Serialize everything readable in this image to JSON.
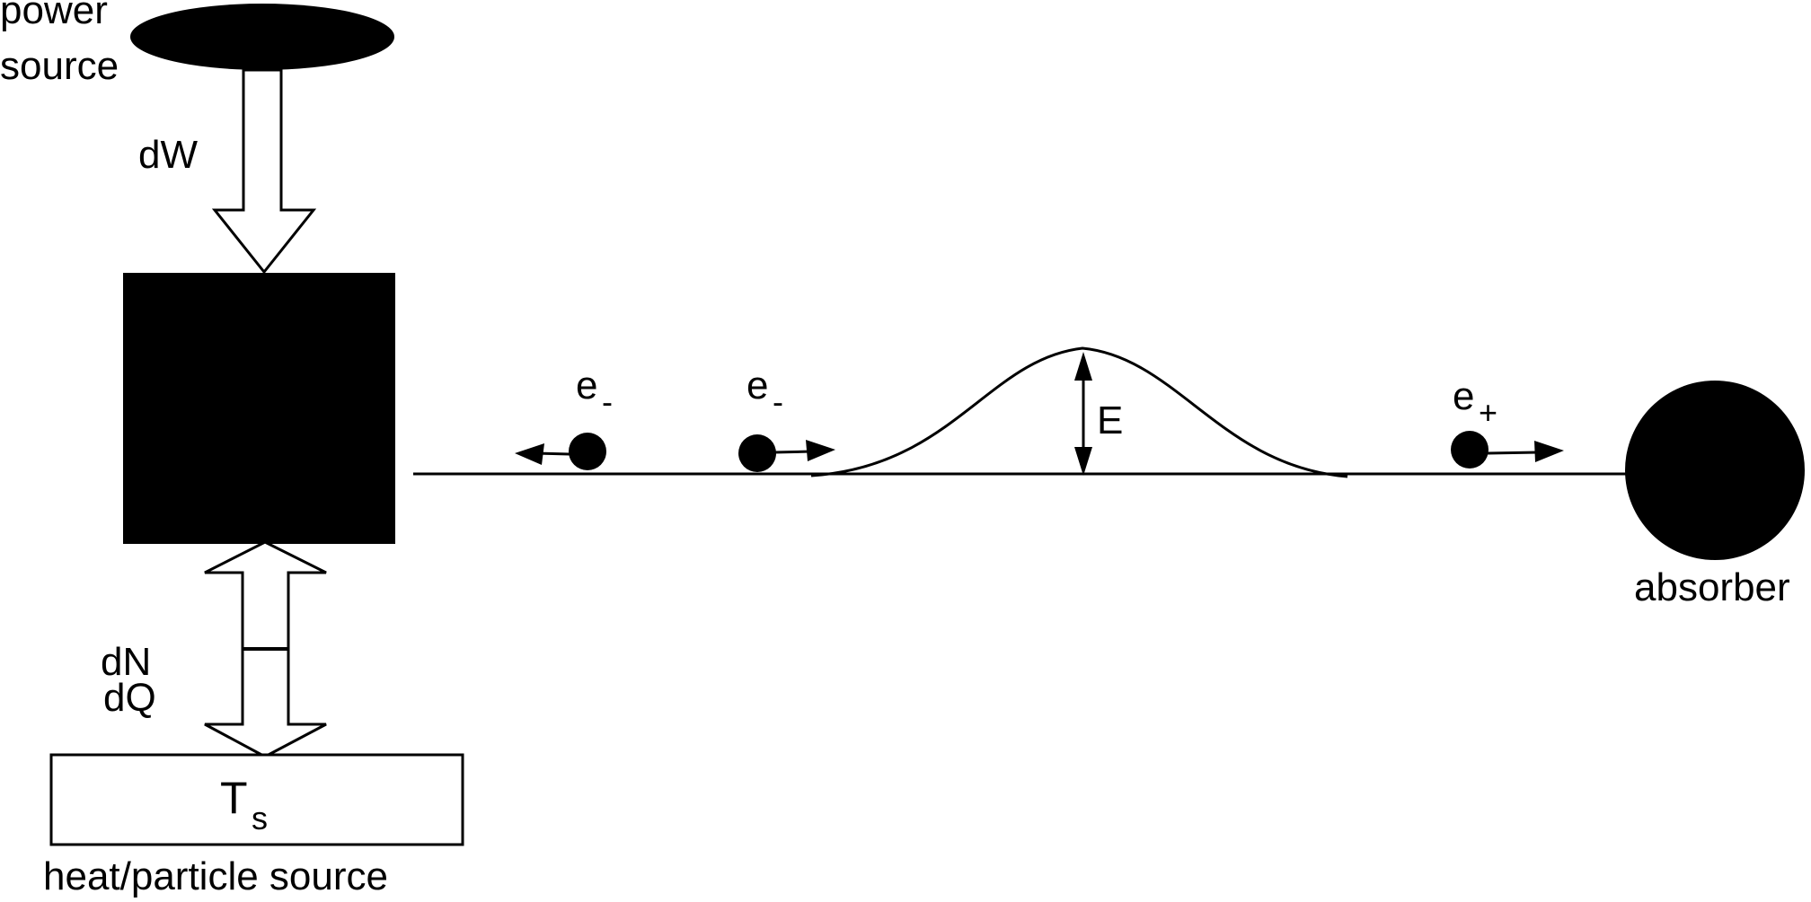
{
  "labels": {
    "power_source_line1": "power",
    "power_source_line2": "source",
    "work": "dW",
    "particles": "dN",
    "heat": "dQ",
    "source_temp_main": "T",
    "source_temp_sub": "s",
    "heat_particle_source": "heat/particle source",
    "energy": "E",
    "absorber": "absorber",
    "electron_left_main": "e",
    "electron_left_sub": "-",
    "electron_mid_main": "e",
    "electron_mid_sub": "-",
    "electron_right_main": "e",
    "electron_right_sub": "+"
  },
  "colors": {
    "ink": "#000000",
    "background": "#ffffff"
  }
}
